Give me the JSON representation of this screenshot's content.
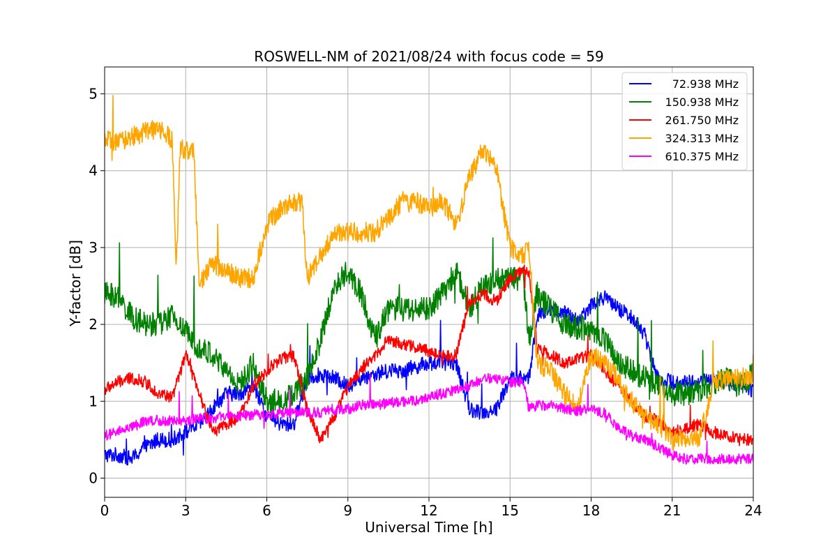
{
  "chart_data": {
    "type": "line",
    "title": "ROSWELL-NM of 2021/08/24 with focus code = 59",
    "xlabel": "Universal Time [h]",
    "ylabel": "Y-factor [dB]",
    "xlim": [
      0,
      24
    ],
    "ylim": [
      -0.25,
      5.35
    ],
    "xticks": [
      0,
      3,
      6,
      9,
      12,
      15,
      18,
      21,
      24
    ],
    "xtick_labels": [
      "0",
      "3",
      "6",
      "9",
      "12",
      "15",
      "18",
      "21",
      "24"
    ],
    "yticks": [
      0,
      1,
      2,
      3,
      4,
      5
    ],
    "ytick_labels": [
      "0",
      "1",
      "2",
      "3",
      "4",
      "5"
    ],
    "grid": true,
    "legend_position": "top-right",
    "series": [
      {
        "name": "72.938 MHz",
        "color": "#0000ff",
        "noise": 0.1,
        "x": [
          0,
          0.5,
          1.0,
          1.5,
          2.0,
          2.5,
          3.0,
          3.5,
          4.0,
          4.5,
          5.0,
          5.5,
          6.0,
          6.5,
          7.0,
          7.5,
          8.0,
          8.5,
          9.0,
          9.5,
          10.0,
          10.5,
          11.0,
          11.5,
          12.0,
          12.5,
          13.0,
          13.5,
          14.0,
          14.5,
          15.0,
          15.5,
          15.7,
          16.0,
          16.5,
          17.0,
          17.5,
          18.0,
          18.5,
          19.0,
          19.5,
          20.0,
          20.2,
          20.5,
          21.0,
          21.5,
          22.0,
          22.5,
          23.0,
          23.5,
          24.0
        ],
        "y": [
          0.3,
          0.3,
          0.25,
          0.4,
          0.5,
          0.5,
          0.6,
          0.7,
          0.9,
          1.1,
          1.1,
          1.2,
          0.8,
          0.7,
          0.7,
          1.3,
          1.35,
          1.3,
          1.2,
          1.3,
          1.35,
          1.4,
          1.4,
          1.45,
          1.5,
          1.5,
          1.5,
          0.9,
          0.85,
          0.9,
          1.3,
          1.3,
          1.3,
          2.1,
          2.2,
          2.15,
          2.05,
          2.25,
          2.35,
          2.2,
          2.1,
          1.85,
          1.6,
          1.3,
          1.25,
          1.25,
          1.25,
          1.3,
          1.25,
          1.2,
          1.15
        ]
      },
      {
        "name": "150.938 MHz",
        "color": "#008000",
        "noise": 0.16,
        "x": [
          0,
          0.5,
          1.0,
          1.5,
          2.0,
          2.5,
          3.0,
          3.5,
          4.0,
          4.5,
          5.0,
          5.5,
          6.0,
          6.5,
          7.0,
          7.5,
          8.0,
          8.5,
          9.0,
          9.5,
          10.0,
          10.5,
          11.0,
          11.5,
          12.0,
          12.5,
          13.0,
          13.5,
          14.0,
          14.5,
          15.0,
          15.5,
          15.7,
          16.0,
          16.5,
          17.0,
          17.5,
          18.0,
          18.5,
          19.0,
          19.5,
          20.0,
          20.5,
          21.0,
          21.5,
          22.0,
          22.5,
          23.0,
          23.5,
          24.0
        ],
        "y": [
          2.4,
          2.35,
          2.1,
          2.0,
          2.0,
          2.1,
          1.9,
          1.7,
          1.6,
          1.4,
          1.2,
          1.5,
          1.0,
          1.0,
          1.1,
          1.3,
          1.8,
          2.5,
          2.7,
          2.4,
          1.8,
          2.2,
          2.2,
          2.2,
          2.2,
          2.4,
          2.7,
          2.2,
          2.5,
          2.6,
          2.6,
          2.6,
          1.8,
          2.4,
          2.2,
          2.0,
          1.95,
          1.95,
          1.8,
          1.5,
          1.4,
          1.3,
          1.2,
          1.1,
          1.1,
          1.15,
          1.2,
          1.3,
          1.2,
          1.35
        ]
      },
      {
        "name": "261.750 MHz",
        "color": "#ff0000",
        "noise": 0.08,
        "x": [
          0,
          0.5,
          1.0,
          1.5,
          2.0,
          2.5,
          3.0,
          3.5,
          4.0,
          4.5,
          5.0,
          5.5,
          6.0,
          6.5,
          7.0,
          7.5,
          8.0,
          8.5,
          9.0,
          9.5,
          10.0,
          10.5,
          11.0,
          11.5,
          12.0,
          12.5,
          13.0,
          13.5,
          14.0,
          14.5,
          15.0,
          15.5,
          15.7,
          16.0,
          16.5,
          17.0,
          17.5,
          18.0,
          18.5,
          19.0,
          19.5,
          20.0,
          20.5,
          21.0,
          21.5,
          22.0,
          22.5,
          23.0,
          23.5,
          24.0
        ],
        "y": [
          1.15,
          1.25,
          1.3,
          1.25,
          1.1,
          1.05,
          1.6,
          1.1,
          0.6,
          0.7,
          0.8,
          1.2,
          1.4,
          1.55,
          1.6,
          0.9,
          0.5,
          0.8,
          1.2,
          1.4,
          1.6,
          1.8,
          1.75,
          1.7,
          1.65,
          1.6,
          1.6,
          2.3,
          2.4,
          2.3,
          2.6,
          2.7,
          2.7,
          1.7,
          1.6,
          1.5,
          1.55,
          1.6,
          1.4,
          1.2,
          1.0,
          0.8,
          0.75,
          0.6,
          0.65,
          0.7,
          0.6,
          0.55,
          0.5,
          0.5
        ]
      },
      {
        "name": "324.313 MHz",
        "color": "#ffa500",
        "noise": 0.13,
        "x": [
          0,
          0.5,
          1.0,
          1.5,
          2.0,
          2.5,
          2.65,
          2.8,
          3.3,
          3.5,
          4.0,
          4.5,
          5.0,
          5.5,
          6.0,
          6.5,
          7.0,
          7.3,
          7.5,
          8.0,
          8.5,
          9.0,
          9.5,
          10.0,
          10.5,
          11.0,
          11.5,
          12.0,
          12.5,
          13.0,
          13.5,
          14.0,
          14.5,
          15.0,
          15.5,
          15.7,
          16.0,
          16.5,
          17.0,
          17.5,
          18.0,
          18.5,
          19.0,
          19.5,
          20.0,
          20.5,
          21.0,
          21.5,
          22.0,
          22.5,
          23.0,
          23.5,
          24.0
        ],
        "y": [
          4.4,
          4.35,
          4.45,
          4.5,
          4.55,
          4.4,
          2.7,
          4.3,
          4.25,
          2.5,
          2.8,
          2.7,
          2.6,
          2.6,
          3.3,
          3.5,
          3.6,
          3.6,
          2.6,
          2.9,
          3.2,
          3.2,
          3.2,
          3.2,
          3.4,
          3.6,
          3.6,
          3.5,
          3.6,
          3.3,
          3.9,
          4.3,
          4.0,
          3.0,
          2.9,
          3.0,
          1.5,
          1.4,
          1.1,
          0.9,
          1.6,
          1.5,
          1.3,
          1.0,
          0.8,
          0.7,
          0.5,
          0.5,
          0.5,
          1.2,
          1.3,
          1.3,
          1.35
        ]
      },
      {
        "name": "610.375 MHz",
        "color": "#ff00ff",
        "noise": 0.07,
        "x": [
          0,
          0.5,
          1.0,
          1.5,
          2.0,
          2.5,
          3.0,
          3.5,
          4.0,
          4.5,
          5.0,
          5.5,
          6.0,
          6.5,
          7.0,
          7.5,
          8.0,
          8.5,
          9.0,
          9.5,
          10.0,
          10.5,
          11.0,
          11.5,
          12.0,
          12.5,
          13.0,
          13.5,
          14.0,
          14.5,
          15.0,
          15.5,
          15.7,
          16.0,
          16.5,
          17.0,
          17.5,
          18.0,
          18.5,
          19.0,
          19.5,
          20.0,
          20.5,
          21.0,
          21.5,
          22.0,
          22.5,
          23.0,
          23.5,
          24.0
        ],
        "y": [
          0.55,
          0.6,
          0.65,
          0.75,
          0.75,
          0.75,
          0.75,
          0.78,
          0.78,
          0.8,
          0.8,
          0.83,
          0.83,
          0.85,
          0.85,
          0.85,
          0.85,
          0.9,
          0.9,
          0.95,
          0.95,
          0.98,
          1.0,
          1.0,
          1.05,
          1.1,
          1.15,
          1.2,
          1.3,
          1.3,
          1.25,
          1.25,
          0.9,
          0.95,
          0.95,
          0.9,
          0.88,
          0.9,
          0.85,
          0.65,
          0.55,
          0.5,
          0.4,
          0.3,
          0.25,
          0.25,
          0.25,
          0.25,
          0.25,
          0.25
        ]
      }
    ]
  }
}
